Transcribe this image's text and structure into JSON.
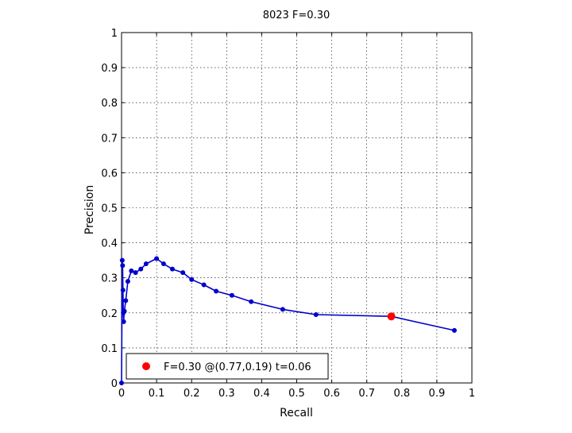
{
  "chart_data": {
    "type": "line",
    "title": "8023 F=0.30",
    "xlabel": "Recall",
    "ylabel": "Precision",
    "xlim": [
      0,
      1
    ],
    "ylim": [
      0,
      1
    ],
    "grid": true,
    "xticks": [
      "0",
      "0.1",
      "0.2",
      "0.3",
      "0.4",
      "0.5",
      "0.6",
      "0.7",
      "0.8",
      "0.9",
      "1"
    ],
    "yticks": [
      "0",
      "0.1",
      "0.2",
      "0.3",
      "0.4",
      "0.5",
      "0.6",
      "0.7",
      "0.8",
      "0.9",
      "1"
    ],
    "series": [
      {
        "color": "#0000cc",
        "x": [
          0,
          0.002,
          0.003,
          0.004,
          0.005,
          0.006,
          0.008,
          0.012,
          0.018,
          0.028,
          0.04,
          0.055,
          0.07,
          0.1,
          0.12,
          0.145,
          0.175,
          0.2,
          0.235,
          0.27,
          0.315,
          0.37,
          0.46,
          0.555,
          0.77,
          0.95
        ],
        "y": [
          0,
          0.35,
          0.335,
          0.265,
          0.2,
          0.175,
          0.205,
          0.235,
          0.29,
          0.32,
          0.315,
          0.325,
          0.34,
          0.355,
          0.34,
          0.325,
          0.315,
          0.295,
          0.28,
          0.262,
          0.25,
          0.232,
          0.21,
          0.195,
          0.19,
          0.15
        ]
      }
    ],
    "highlight": {
      "x": 0.77,
      "y": 0.19,
      "color": "#ff0000"
    },
    "legend": {
      "position": "bottom-left",
      "label": "F=0.30 @(0.77,0.19) t=0.06"
    }
  }
}
